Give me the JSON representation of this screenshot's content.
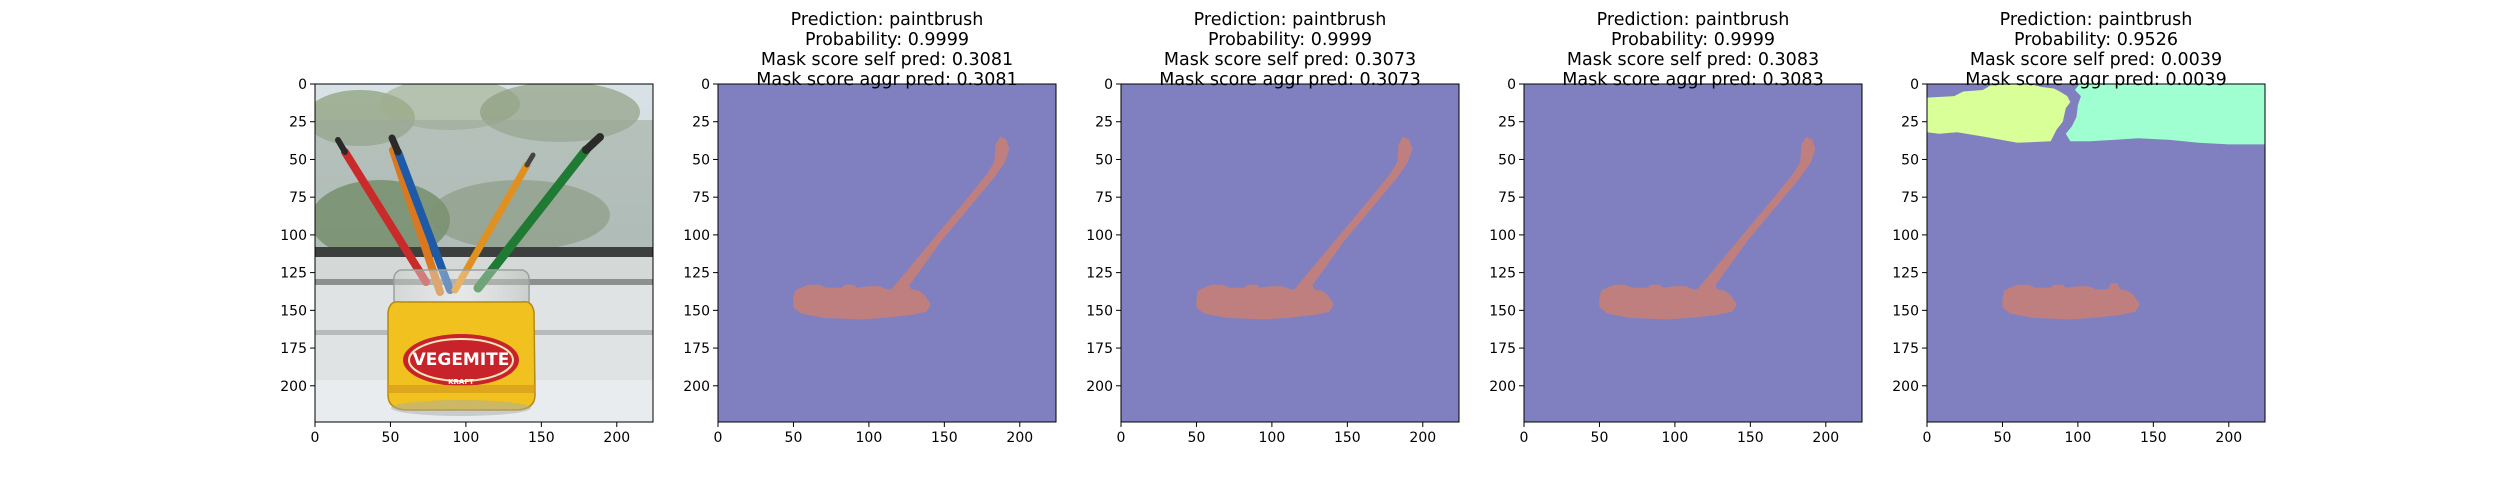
{
  "chart_data": [
    {
      "type": "image",
      "content": "photo of a Vegemite jar holding paintbrushes on a windowsill",
      "title_lines": [],
      "xlim": [
        0,
        224
      ],
      "ylim": [
        224,
        0
      ],
      "xticks": [
        0,
        50,
        100,
        150,
        200
      ],
      "yticks": [
        0,
        25,
        50,
        75,
        100,
        125,
        150,
        175,
        200
      ],
      "jar_label": {
        "main": "VEGEMITE",
        "sub": "KRAFT"
      }
    },
    {
      "type": "mask",
      "title_lines": [
        "Prediction: paintbrush",
        "Probability: 0.9999",
        "Mask score self pred: 0.3081",
        "Mask score aggr pred: 0.3081"
      ],
      "prediction": "paintbrush",
      "probability": 0.9999,
      "mask_score_self_pred": 0.3081,
      "mask_score_aggr_pred": 0.3081,
      "xlim": [
        0,
        224
      ],
      "ylim": [
        224,
        0
      ],
      "xticks": [
        0,
        50,
        100,
        150,
        200
      ],
      "yticks": [
        0,
        25,
        50,
        75,
        100,
        125,
        150,
        175,
        200
      ],
      "background_color": "#8080c0",
      "segments": [
        {
          "color": "#c07f7f",
          "points": [
            [
              50,
              143
            ],
            [
              51,
              137
            ],
            [
              55,
              135
            ],
            [
              60,
              133
            ],
            [
              67,
              133
            ],
            [
              72,
              135
            ],
            [
              82,
              135
            ],
            [
              84,
              133
            ],
            [
              90,
              133
            ],
            [
              92,
              135
            ],
            [
              100,
              134
            ],
            [
              107,
              134
            ],
            [
              112,
              136
            ],
            [
              120,
              136
            ],
            [
              122,
              132
            ],
            [
              126,
              132
            ],
            [
              128,
              136
            ],
            [
              133,
              137
            ],
            [
              137,
              140
            ],
            [
              141,
              146
            ],
            [
              138,
              151
            ],
            [
              128,
              153
            ],
            [
              110,
              155
            ],
            [
              95,
              156
            ],
            [
              70,
              155
            ],
            [
              55,
              152
            ],
            [
              50,
              148
            ]
          ]
        },
        {
          "color": "#c07f7f",
          "points": [
            [
              115,
              136
            ],
            [
              145,
              100
            ],
            [
              165,
              76
            ],
            [
              178,
              60
            ],
            [
              183,
              52
            ],
            [
              184,
              40
            ],
            [
              187,
              35
            ],
            [
              191,
              37
            ],
            [
              193,
              43
            ],
            [
              190,
              52
            ],
            [
              183,
              62
            ],
            [
              168,
              80
            ],
            [
              148,
              104
            ],
            [
              125,
              136
            ]
          ]
        }
      ]
    },
    {
      "type": "mask",
      "title_lines": [
        "Prediction: paintbrush",
        "Probability: 0.9999",
        "Mask score self pred: 0.3073",
        "Mask score aggr pred: 0.3073"
      ],
      "prediction": "paintbrush",
      "probability": 0.9999,
      "mask_score_self_pred": 0.3073,
      "mask_score_aggr_pred": 0.3073,
      "xlim": [
        0,
        224
      ],
      "ylim": [
        224,
        0
      ],
      "xticks": [
        0,
        50,
        100,
        150,
        200
      ],
      "yticks": [
        0,
        25,
        50,
        75,
        100,
        125,
        150,
        175,
        200
      ],
      "background_color": "#8080c0",
      "segments": [
        {
          "color": "#c07f7f",
          "points": [
            [
              50,
              143
            ],
            [
              51,
              137
            ],
            [
              55,
              135
            ],
            [
              60,
              133
            ],
            [
              67,
              133
            ],
            [
              72,
              135
            ],
            [
              82,
              135
            ],
            [
              84,
              133
            ],
            [
              90,
              133
            ],
            [
              92,
              135
            ],
            [
              100,
              134
            ],
            [
              107,
              134
            ],
            [
              112,
              136
            ],
            [
              120,
              136
            ],
            [
              122,
              132
            ],
            [
              126,
              132
            ],
            [
              128,
              136
            ],
            [
              133,
              137
            ],
            [
              137,
              140
            ],
            [
              141,
              146
            ],
            [
              138,
              151
            ],
            [
              128,
              153
            ],
            [
              110,
              155
            ],
            [
              95,
              156
            ],
            [
              70,
              155
            ],
            [
              55,
              152
            ],
            [
              50,
              148
            ]
          ]
        },
        {
          "color": "#c07f7f",
          "points": [
            [
              115,
              136
            ],
            [
              145,
              100
            ],
            [
              165,
              76
            ],
            [
              178,
              60
            ],
            [
              183,
              52
            ],
            [
              184,
              40
            ],
            [
              187,
              35
            ],
            [
              191,
              37
            ],
            [
              193,
              43
            ],
            [
              190,
              52
            ],
            [
              183,
              62
            ],
            [
              168,
              80
            ],
            [
              148,
              104
            ],
            [
              125,
              136
            ]
          ]
        }
      ]
    },
    {
      "type": "mask",
      "title_lines": [
        "Prediction: paintbrush",
        "Probability: 0.9999",
        "Mask score self pred: 0.3083",
        "Mask score aggr pred: 0.3083"
      ],
      "prediction": "paintbrush",
      "probability": 0.9999,
      "mask_score_self_pred": 0.3083,
      "mask_score_aggr_pred": 0.3083,
      "xlim": [
        0,
        224
      ],
      "ylim": [
        224,
        0
      ],
      "xticks": [
        0,
        50,
        100,
        150,
        200
      ],
      "yticks": [
        0,
        25,
        50,
        75,
        100,
        125,
        150,
        175,
        200
      ],
      "background_color": "#8080c0",
      "segments": [
        {
          "color": "#c07f7f",
          "points": [
            [
              50,
              143
            ],
            [
              51,
              137
            ],
            [
              55,
              135
            ],
            [
              60,
              133
            ],
            [
              67,
              133
            ],
            [
              72,
              135
            ],
            [
              82,
              135
            ],
            [
              84,
              133
            ],
            [
              90,
              133
            ],
            [
              92,
              135
            ],
            [
              100,
              134
            ],
            [
              107,
              134
            ],
            [
              112,
              136
            ],
            [
              120,
              136
            ],
            [
              122,
              132
            ],
            [
              126,
              132
            ],
            [
              128,
              136
            ],
            [
              133,
              137
            ],
            [
              137,
              140
            ],
            [
              141,
              146
            ],
            [
              138,
              151
            ],
            [
              128,
              153
            ],
            [
              110,
              155
            ],
            [
              95,
              156
            ],
            [
              70,
              155
            ],
            [
              55,
              152
            ],
            [
              50,
              148
            ]
          ]
        },
        {
          "color": "#c07f7f",
          "points": [
            [
              115,
              136
            ],
            [
              145,
              100
            ],
            [
              165,
              76
            ],
            [
              178,
              60
            ],
            [
              183,
              52
            ],
            [
              184,
              40
            ],
            [
              187,
              35
            ],
            [
              191,
              37
            ],
            [
              193,
              43
            ],
            [
              190,
              52
            ],
            [
              183,
              62
            ],
            [
              168,
              80
            ],
            [
              148,
              104
            ],
            [
              125,
              136
            ]
          ]
        }
      ]
    },
    {
      "type": "mask",
      "title_lines": [
        "Prediction: paintbrush",
        "Probability: 0.9526",
        "Mask score self pred: 0.0039",
        "Mask score aggr pred: 0.0039"
      ],
      "prediction": "paintbrush",
      "probability": 0.9526,
      "mask_score_self_pred": 0.0039,
      "mask_score_aggr_pred": 0.0039,
      "xlim": [
        0,
        224
      ],
      "ylim": [
        224,
        0
      ],
      "xticks": [
        0,
        50,
        100,
        150,
        200
      ],
      "yticks": [
        0,
        25,
        50,
        75,
        100,
        125,
        150,
        175,
        200
      ],
      "background_color": "#8080c0",
      "segments": [
        {
          "color": "#c07f7f",
          "points": [
            [
              50,
              143
            ],
            [
              51,
              137
            ],
            [
              55,
              135
            ],
            [
              60,
              133
            ],
            [
              67,
              133
            ],
            [
              72,
              135
            ],
            [
              82,
              135
            ],
            [
              84,
              133
            ],
            [
              90,
              133
            ],
            [
              92,
              135
            ],
            [
              100,
              134
            ],
            [
              107,
              134
            ],
            [
              112,
              136
            ],
            [
              120,
              136
            ],
            [
              122,
              132
            ],
            [
              126,
              132
            ],
            [
              128,
              136
            ],
            [
              133,
              137
            ],
            [
              137,
              140
            ],
            [
              141,
              146
            ],
            [
              138,
              151
            ],
            [
              128,
              153
            ],
            [
              110,
              155
            ],
            [
              95,
              156
            ],
            [
              70,
              155
            ],
            [
              55,
              152
            ],
            [
              50,
              148
            ]
          ]
        },
        {
          "color": "#d8ff98",
          "points": [
            [
              0,
              9
            ],
            [
              18,
              8
            ],
            [
              24,
              5
            ],
            [
              37,
              4
            ],
            [
              42,
              1
            ],
            [
              55,
              0
            ],
            [
              68,
              0
            ],
            [
              76,
              2
            ],
            [
              84,
              3
            ],
            [
              88,
              5
            ],
            [
              93,
              8
            ],
            [
              95,
              12
            ],
            [
              92,
              16
            ],
            [
              90,
              25
            ],
            [
              86,
              30
            ],
            [
              82,
              38
            ],
            [
              60,
              39
            ],
            [
              38,
              35
            ],
            [
              20,
              32
            ],
            [
              8,
              33
            ],
            [
              0,
              32
            ]
          ]
        },
        {
          "color": "#a0ffd0",
          "points": [
            [
              101,
              0
            ],
            [
              224,
              0
            ],
            [
              224,
              40
            ],
            [
              200,
              40
            ],
            [
              180,
              39
            ],
            [
              160,
              37
            ],
            [
              140,
              36
            ],
            [
              125,
              37
            ],
            [
              108,
              38
            ],
            [
              95,
              38
            ],
            [
              92,
              33
            ],
            [
              96,
              28
            ],
            [
              99,
              22
            ],
            [
              100,
              14
            ],
            [
              102,
              8
            ],
            [
              98,
              4
            ]
          ]
        }
      ]
    }
  ]
}
